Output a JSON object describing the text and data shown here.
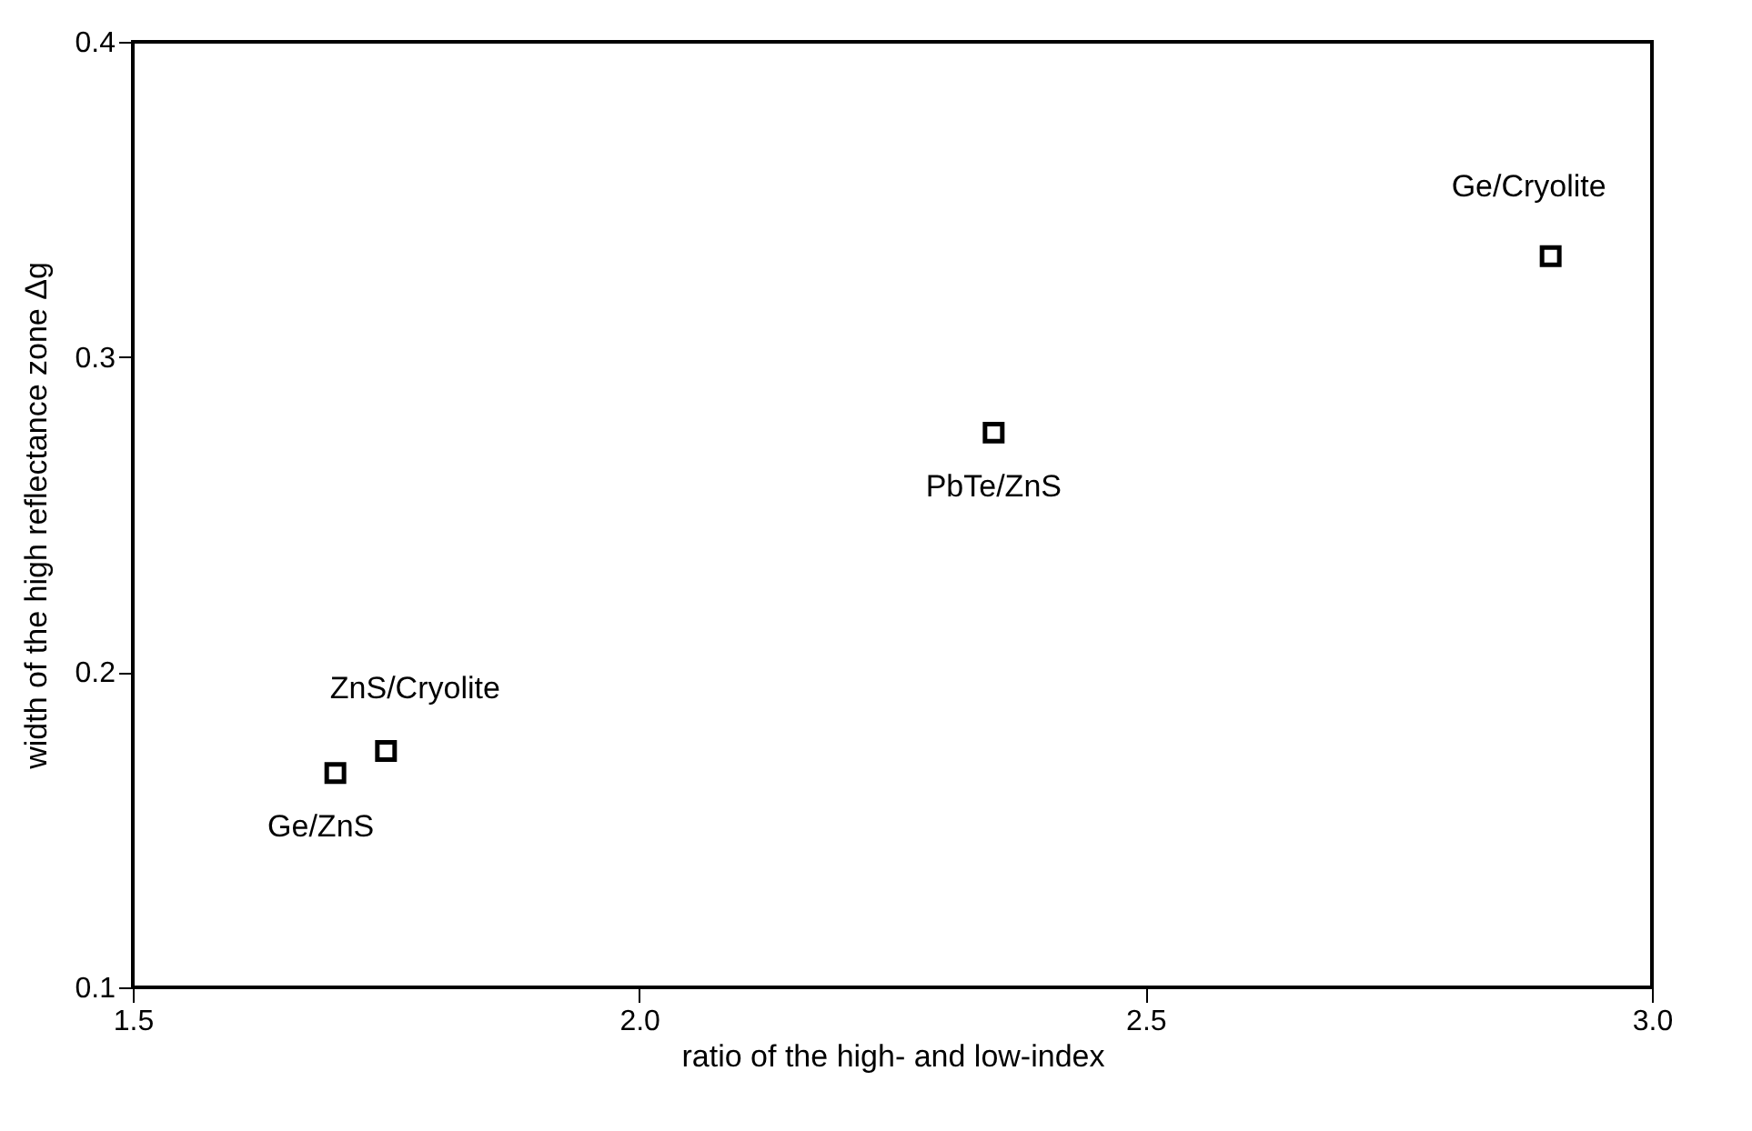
{
  "chart_data": {
    "type": "scatter",
    "xlabel": "ratio of the high- and low-index",
    "ylabel": "width of the high reflectance zone Δg",
    "x": [
      1.7,
      1.75,
      2.35,
      2.9
    ],
    "values": [
      0.168,
      0.175,
      0.276,
      0.332
    ],
    "color": "#000000",
    "marker": "square",
    "grid": false,
    "xlim": [
      1.5,
      3.0
    ],
    "xticks": [
      {
        "value": 1.5,
        "label": "1.5"
      },
      {
        "value": 2.0,
        "label": "2.0"
      },
      {
        "value": 2.5,
        "label": "2.5"
      },
      {
        "value": 3.0,
        "label": "3.0"
      }
    ],
    "ylim": [
      0.1,
      0.4
    ],
    "yticks": [
      0.1,
      0.2,
      0.3,
      0.4
    ],
    "annotations": [
      {
        "text": "Ge/ZnS",
        "x": 1.7,
        "y": 0.168
      },
      {
        "text": "ZnS/Cryolite",
        "x": 1.75,
        "y": 0.175
      },
      {
        "text": "PbTe/ZnS",
        "x": 2.35,
        "y": 0.276
      },
      {
        "text": "Ge/Cryolite",
        "x": 2.9,
        "y": 0.332
      }
    ]
  }
}
